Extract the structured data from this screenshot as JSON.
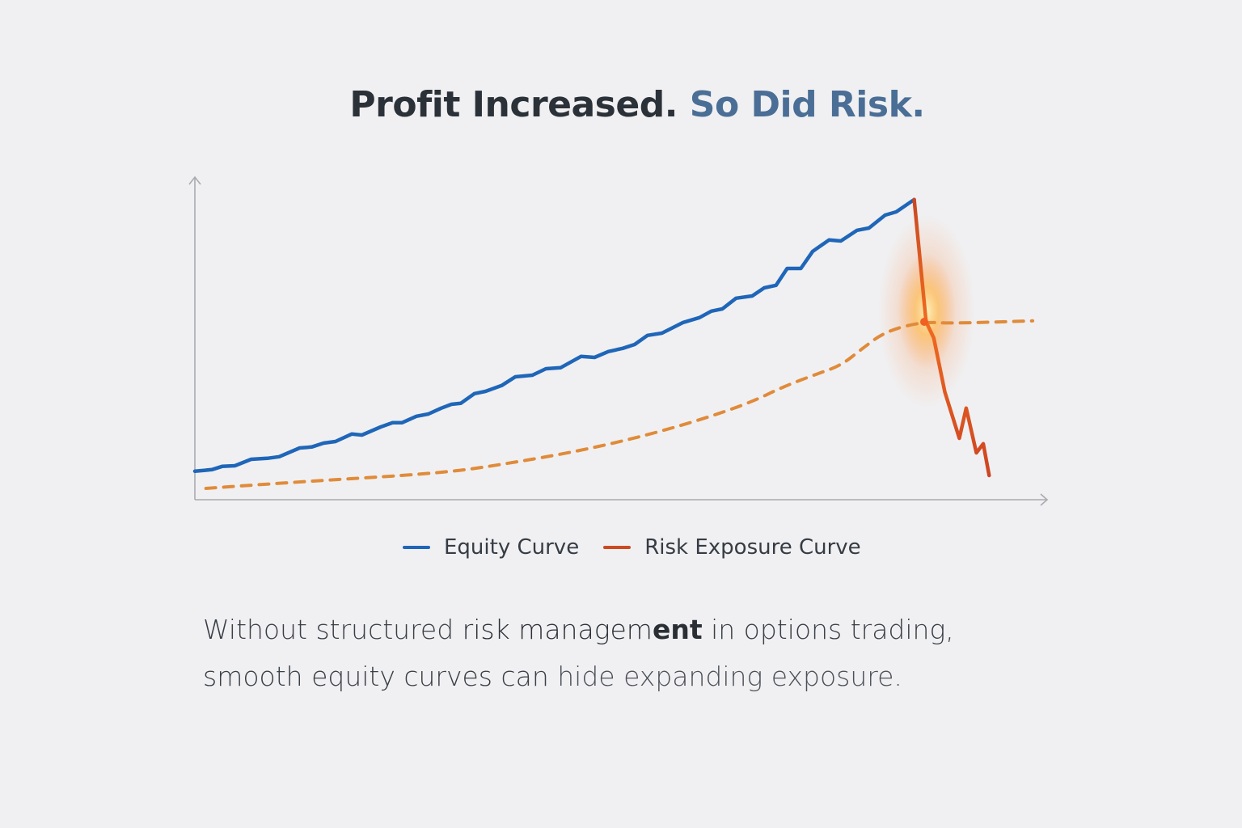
{
  "title": {
    "part1": "Profit Increased.",
    "part2": "So Did Risk.",
    "part1_color": "#2b3138",
    "part2_color": "#4a6e96"
  },
  "legend": {
    "items": [
      {
        "label": "Equity Curve",
        "color": "#1f66b8"
      },
      {
        "label": "Risk Exposure Curve",
        "color": "#cc4a22"
      }
    ]
  },
  "caption": {
    "line1_a": "Without structured ",
    "line1_b": "risk managem",
    "line1_c": "ent",
    "line1_d": " in options trading,",
    "line2_a": "smooth equity curves can ",
    "line2_b": "hide expanding exposure."
  },
  "colors": {
    "background": "#f0f0f2",
    "axis": "#a9abb0",
    "equity": "#1f66b8",
    "risk_solid": "#cc4a22",
    "risk_dashed": "#e08b3a",
    "glow": "#ff9a3c"
  },
  "chart_data": {
    "type": "line",
    "title": "Profit Increased. So Did Risk.",
    "xlabel": "",
    "ylabel": "",
    "xlim": [
      0,
      100
    ],
    "ylim": [
      0,
      100
    ],
    "grid": false,
    "axis_ticks": false,
    "legend_position": "bottom-center",
    "series": [
      {
        "name": "Equity Curve",
        "style": "solid",
        "color": "#1f66b8",
        "x": [
          0,
          2,
          3.2,
          4.7,
          6.6,
          8.5,
          9.9,
          12.3,
          13.7,
          15.1,
          16.5,
          18.4,
          19.6,
          21.8,
          23.2,
          24.3,
          26,
          27.4,
          28.9,
          30.1,
          31.2,
          32.8,
          34.1,
          36,
          37.6,
          39.6,
          41.2,
          42.9,
          45.3,
          46.9,
          48.5,
          50.2,
          51.6,
          53.1,
          54.8,
          57.3,
          59.2,
          60.6,
          61.9,
          63.5,
          65.4,
          66.8,
          68.2,
          69.5,
          71.1,
          72.5,
          74.4,
          75.8,
          77.7,
          79.1,
          81,
          82.3,
          84.4
        ],
        "y": [
          8.8,
          9.3,
          10.3,
          10.5,
          12.5,
          12.8,
          13.3,
          16,
          16.3,
          17.5,
          18,
          20.3,
          20,
          22.5,
          23.8,
          23.8,
          25.8,
          26.5,
          28.3,
          29.5,
          29.8,
          32.8,
          33.5,
          35.3,
          38,
          38.5,
          40.5,
          40.8,
          44.3,
          44,
          45.8,
          46.8,
          48,
          50.8,
          51.5,
          54.8,
          56.3,
          58.3,
          59,
          62.3,
          63,
          65.5,
          66.3,
          71.5,
          71.5,
          76.8,
          80.3,
          80,
          83.3,
          84,
          88,
          89,
          92.8
        ]
      },
      {
        "name": "Risk Exposure Curve (drawdown)",
        "style": "solid",
        "color": "#cc4a22",
        "x": [
          84.4,
          85.8,
          86.7,
          88,
          89.7,
          90.5,
          91.7,
          92.5,
          93.2
        ],
        "y": [
          92.8,
          55,
          50,
          33.3,
          19,
          28.3,
          14.5,
          17.3,
          7.5
        ]
      },
      {
        "name": "Risk Exposure (dashed trend)",
        "style": "dashed",
        "color": "#e08b3a",
        "x": [
          1.3,
          5.6,
          15.1,
          24.6,
          31.2,
          36.9,
          43.5,
          49.2,
          54.9,
          60.6,
          65.4,
          69.1,
          72.9,
          75.8,
          78.2,
          81,
          85.3,
          88.6,
          98.3
        ],
        "y": [
          3.5,
          4.3,
          6,
          7.5,
          9,
          11.3,
          14.3,
          17.5,
          21.3,
          25.8,
          30.3,
          35,
          38.8,
          41.5,
          46.5,
          52,
          55,
          54.5,
          55.3
        ]
      }
    ],
    "annotations": [
      {
        "type": "glow-point",
        "x": 85.8,
        "y": 55,
        "description": "Intersection of drawdown and dashed risk exposure curve"
      }
    ]
  }
}
